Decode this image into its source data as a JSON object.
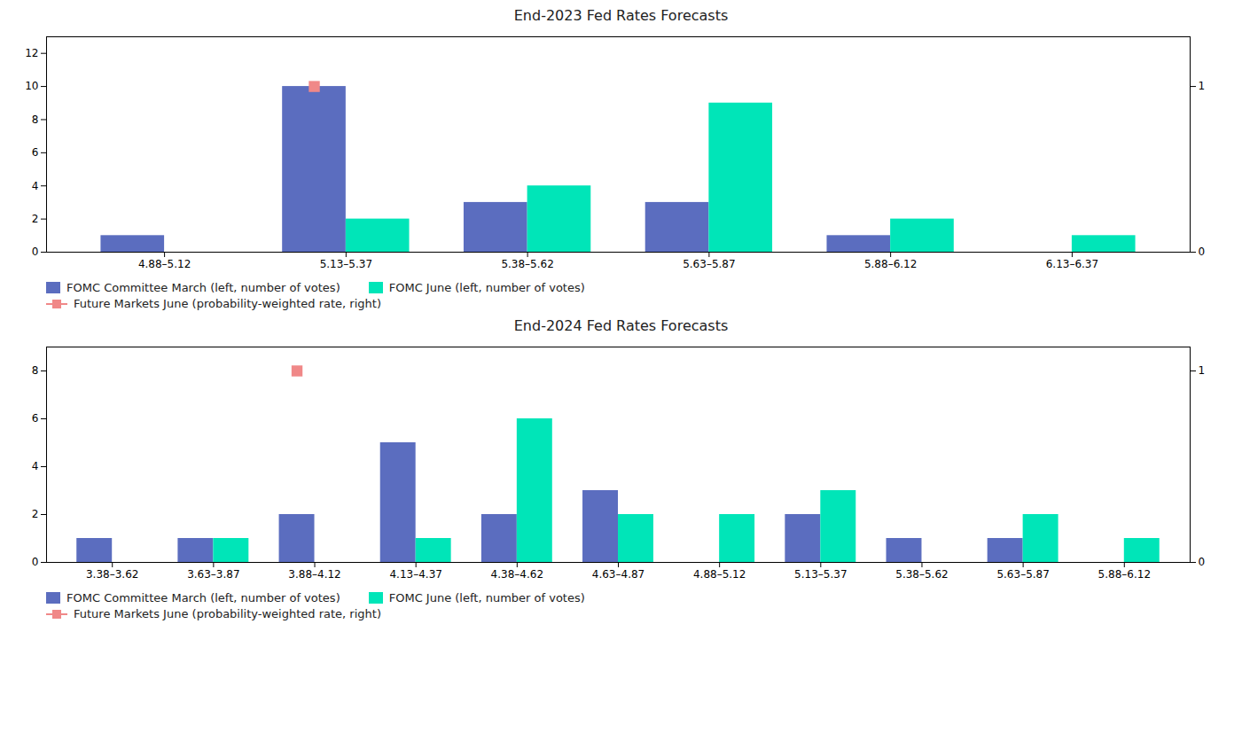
{
  "chart_data": [
    {
      "type": "bar",
      "title": "End-2023 Fed Rates Forecasts",
      "categories": [
        "4.88–5.12",
        "5.13–5.37",
        "5.38–5.62",
        "5.63–5.87",
        "5.88–6.12",
        "6.13–6.37"
      ],
      "series": [
        {
          "name": "FOMC Committee March (left, number of votes)",
          "color": "#5b6dbf",
          "values": [
            1,
            10,
            3,
            3,
            1,
            0
          ]
        },
        {
          "name": "FOMC June (left, number of votes)",
          "color": "#00e5b8",
          "values": [
            0,
            2,
            4,
            9,
            2,
            1
          ]
        },
        {
          "name": "Future Markets June (probability-weighted rate, right)",
          "color": "#f08888",
          "type": "scatter",
          "marker": "square",
          "axis": "y2",
          "values": [
            null,
            1.0,
            null,
            null,
            null,
            null
          ]
        }
      ],
      "ylim": [
        0,
        13
      ],
      "yticks": [
        0,
        2,
        4,
        6,
        8,
        10,
        12
      ],
      "y2lim": [
        0,
        1.3
      ],
      "y2ticks": [
        0,
        1
      ],
      "legend": "bottom"
    },
    {
      "type": "bar",
      "title": "End-2024 Fed Rates Forecasts",
      "categories": [
        "3.38–3.62",
        "3.63–3.87",
        "3.88–4.12",
        "4.13–4.37",
        "4.38–4.62",
        "4.63–4.87",
        "4.88–5.12",
        "5.13–5.37",
        "5.38–5.62",
        "5.63–5.87",
        "5.88–6.12"
      ],
      "series": [
        {
          "name": "FOMC Committee March (left, number of votes)",
          "color": "#5b6dbf",
          "values": [
            1,
            1,
            2,
            5,
            2,
            3,
            0,
            2,
            1,
            1,
            0
          ]
        },
        {
          "name": "FOMC June (left, number of votes)",
          "color": "#00e5b8",
          "values": [
            0,
            1,
            0,
            1,
            6,
            2,
            2,
            3,
            0,
            2,
            1
          ]
        },
        {
          "name": "Future Markets June (probability-weighted rate, right)",
          "color": "#f08888",
          "type": "scatter",
          "marker": "square",
          "axis": "y2",
          "values": [
            null,
            null,
            1.0,
            null,
            null,
            null,
            null,
            null,
            null,
            null,
            null
          ]
        }
      ],
      "ylim": [
        0,
        9
      ],
      "yticks": [
        0,
        2,
        4,
        6,
        8
      ],
      "y2lim": [
        0,
        1.125
      ],
      "y2ticks": [
        0,
        1
      ],
      "legend": "bottom"
    }
  ]
}
